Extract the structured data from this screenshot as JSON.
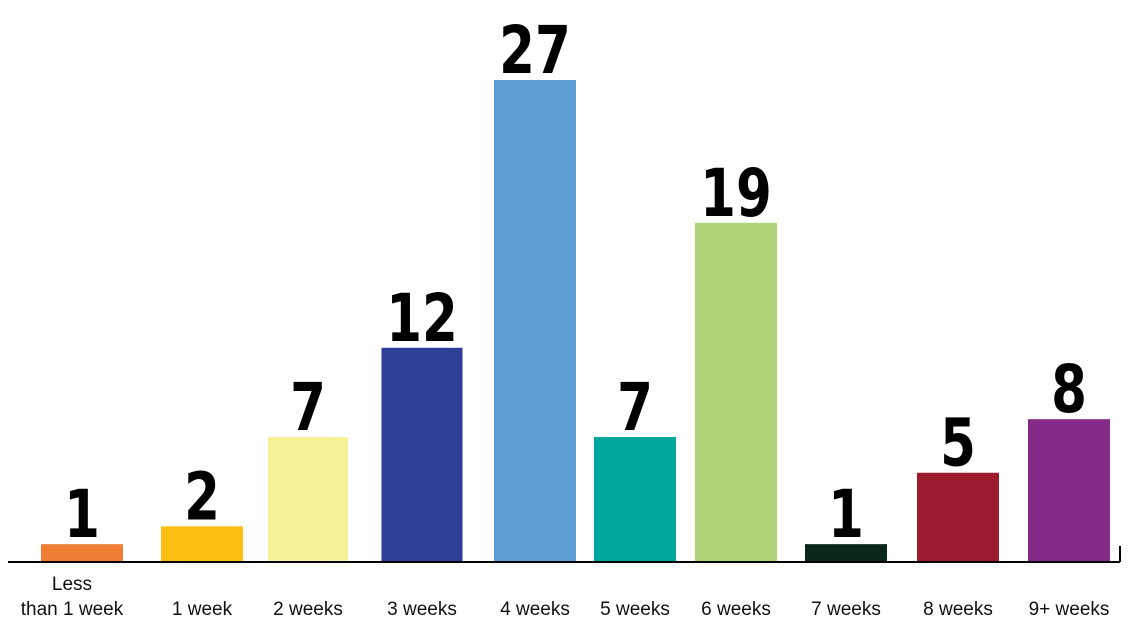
{
  "chart_data": {
    "type": "bar",
    "categories": [
      "Less\nthan 1 week",
      "1 week",
      "2 weeks",
      "3 weeks",
      "4 weeks",
      "5 weeks",
      "6 weeks",
      "7 weeks",
      "8 weeks",
      "9+ weeks"
    ],
    "values": [
      1,
      2,
      7,
      12,
      27,
      7,
      19,
      1,
      5,
      8
    ],
    "colors": [
      "#ef7e32",
      "#fbbf14",
      "#f5f196",
      "#2e3f98",
      "#5e9dd5",
      "#00a79d",
      "#add577",
      "#0b2718",
      "#9c1c2f",
      "#852a88"
    ],
    "ylim": [
      0,
      27
    ],
    "grid": false,
    "legend": "none"
  }
}
